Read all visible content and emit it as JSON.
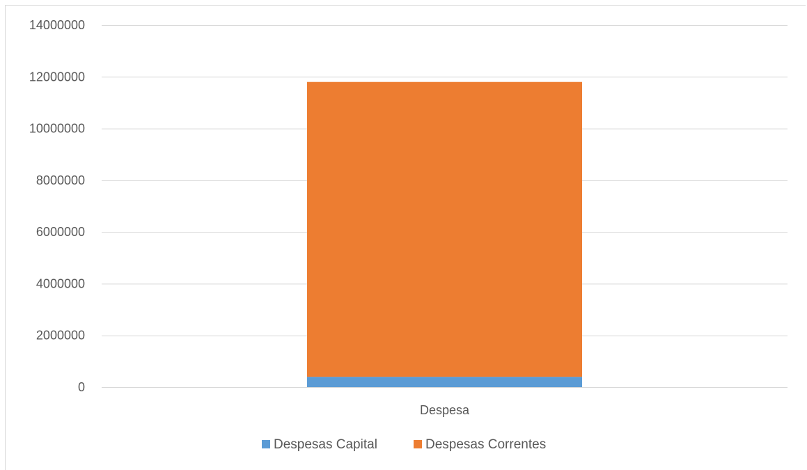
{
  "chart_data": {
    "type": "bar",
    "stacked": true,
    "categories": [
      "Despesa"
    ],
    "series": [
      {
        "name": "Despesas Capital",
        "values": [
          400000
        ],
        "color": "#5b9bd5"
      },
      {
        "name": "Despesas Correntes",
        "values": [
          11400000
        ],
        "color": "#ed7d31"
      }
    ],
    "ylim": [
      0,
      14000000
    ],
    "yticks": [
      "0",
      "2000000",
      "4000000",
      "6000000",
      "8000000",
      "10000000",
      "12000000",
      "14000000"
    ],
    "grid": true,
    "legend_position": "bottom",
    "gridline_color": "#d9d9d9"
  }
}
